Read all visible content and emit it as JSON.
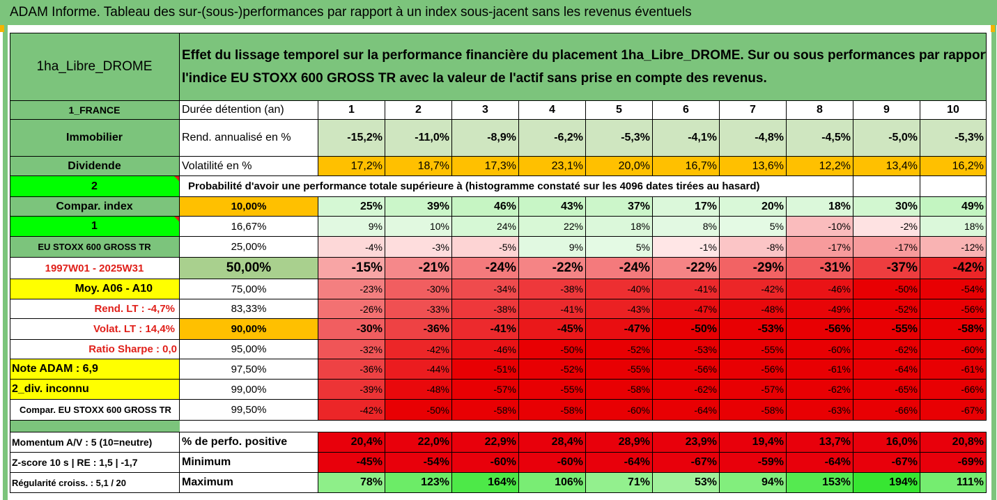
{
  "header": {
    "title": "ADAM Informe. Tableau des sur-(sous-)performances par rapport à un index sous-jacent sans les revenus éventuels"
  },
  "asset": {
    "name": "1ha_Libre_DROME",
    "description_line1": "Effet du lissage temporel sur la performance financière du placement 1ha_Libre_DROME. Sur ou sous performances par rapport à",
    "description_line2": "l'indice EU STOXX 600 GROSS TR avec la valeur de l'actif sans prise en compte des revenus."
  },
  "left_labels": {
    "country": "1_FRANCE",
    "category": "Immobilier",
    "income": "Dividende",
    "number_2": "2",
    "compar_index": "Compar. index",
    "number_1": "1",
    "index_name": "EU STOXX 600 GROSS TR",
    "period": "1997W01 - 2025W31",
    "moy": "Moy. A06 - A10",
    "rend_lt": "Rend. LT :   -4,7%",
    "volat_lt": "Volat. LT :   14,4%",
    "sharpe": "Ratio Sharpe :   0,0",
    "note": "Note ADAM : 6,9",
    "div": "2_div. inconnu",
    "compar_footer": "Compar. EU STOXX 600 GROSS TR"
  },
  "row_labels": {
    "holding": "Durée détention (an)",
    "rend": "Rend. annualisé en %",
    "volat": "Volatilité en %",
    "probability": "Probabilité d'avoir une performance totale supérieure à (histogramme constaté sur les 4096 dates tirées au hasard)"
  },
  "years": [
    "1",
    "2",
    "3",
    "4",
    "5",
    "6",
    "7",
    "8",
    "9",
    "10"
  ],
  "rend_values": [
    "-15,2%",
    "-11,0%",
    "-8,9%",
    "-6,2%",
    "-5,3%",
    "-4,1%",
    "-4,8%",
    "-4,5%",
    "-5,0%",
    "-5,3%"
  ],
  "volat_values": [
    "17,2%",
    "18,7%",
    "17,3%",
    "23,1%",
    "20,0%",
    "16,7%",
    "13,6%",
    "12,2%",
    "13,4%",
    "16,2%"
  ],
  "percentile_rows": [
    {
      "pct": "10,00%",
      "values": [
        "25%",
        "39%",
        "46%",
        "43%",
        "37%",
        "17%",
        "20%",
        "18%",
        "30%",
        "49%"
      ]
    },
    {
      "pct": "16,67%",
      "values": [
        "9%",
        "10%",
        "24%",
        "22%",
        "18%",
        "8%",
        "5%",
        "-10%",
        "-2%",
        "18%"
      ]
    },
    {
      "pct": "25,00%",
      "values": [
        "-4%",
        "-3%",
        "-5%",
        "9%",
        "5%",
        "-1%",
        "-8%",
        "-17%",
        "-17%",
        "-12%"
      ]
    },
    {
      "pct": "50,00%",
      "values": [
        "-15%",
        "-21%",
        "-24%",
        "-22%",
        "-24%",
        "-22%",
        "-29%",
        "-31%",
        "-37%",
        "-42%"
      ]
    },
    {
      "pct": "75,00%",
      "values": [
        "-23%",
        "-30%",
        "-34%",
        "-38%",
        "-40%",
        "-41%",
        "-42%",
        "-46%",
        "-50%",
        "-54%"
      ]
    },
    {
      "pct": "83,33%",
      "values": [
        "-26%",
        "-33%",
        "-38%",
        "-41%",
        "-43%",
        "-47%",
        "-48%",
        "-49%",
        "-52%",
        "-56%"
      ]
    },
    {
      "pct": "90,00%",
      "values": [
        "-30%",
        "-36%",
        "-41%",
        "-45%",
        "-47%",
        "-50%",
        "-53%",
        "-56%",
        "-55%",
        "-58%"
      ]
    },
    {
      "pct": "95,00%",
      "values": [
        "-32%",
        "-42%",
        "-46%",
        "-50%",
        "-52%",
        "-53%",
        "-55%",
        "-60%",
        "-62%",
        "-60%"
      ]
    },
    {
      "pct": "97,50%",
      "values": [
        "-36%",
        "-44%",
        "-51%",
        "-52%",
        "-55%",
        "-56%",
        "-56%",
        "-61%",
        "-64%",
        "-61%"
      ]
    },
    {
      "pct": "99,00%",
      "values": [
        "-39%",
        "-48%",
        "-57%",
        "-55%",
        "-58%",
        "-62%",
        "-57%",
        "-62%",
        "-65%",
        "-66%"
      ]
    },
    {
      "pct": "99,50%",
      "values": [
        "-42%",
        "-50%",
        "-58%",
        "-58%",
        "-60%",
        "-64%",
        "-58%",
        "-63%",
        "-66%",
        "-67%"
      ]
    }
  ],
  "footer": {
    "momentum": "Momentum A/V : 5 (10=neutre)",
    "zscore": "Z-score 10 s  |  RE : 1,5  |  -1,7",
    "regularite": "Régularité croiss. : 5,1 / 20",
    "positive_label": "% de perfo. positive",
    "min_label": "Minimum",
    "max_label": "Maximum",
    "positive_values": [
      "20,4%",
      "22,0%",
      "22,9%",
      "28,4%",
      "28,9%",
      "23,9%",
      "19,4%",
      "13,7%",
      "16,0%",
      "20,8%"
    ],
    "min_values": [
      "-45%",
      "-54%",
      "-60%",
      "-60%",
      "-64%",
      "-67%",
      "-59%",
      "-64%",
      "-67%",
      "-69%"
    ],
    "max_values": [
      "78%",
      "123%",
      "164%",
      "106%",
      "71%",
      "53%",
      "94%",
      "153%",
      "194%",
      "111%"
    ]
  },
  "colors": {
    "header_green": "#7cc47c",
    "lime": "#00ff00",
    "yellow": "#ffff00",
    "orange": "#ffc000",
    "red": "#e8000b"
  }
}
